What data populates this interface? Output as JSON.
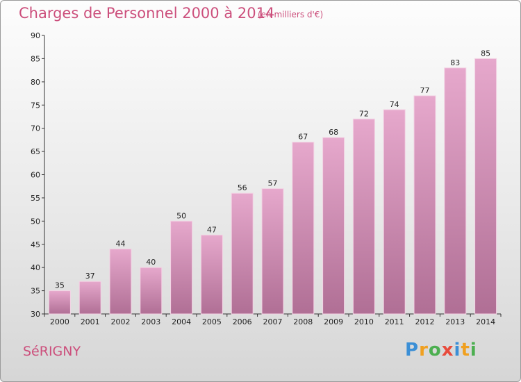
{
  "chart_data": {
    "type": "bar",
    "title": "Charges de Personnel 2000 à 2014",
    "subtitle": "(en milliers d'€)",
    "categories": [
      "2000",
      "2001",
      "2002",
      "2003",
      "2004",
      "2005",
      "2006",
      "2007",
      "2008",
      "2009",
      "2010",
      "2011",
      "2012",
      "2013",
      "2014"
    ],
    "values": [
      35,
      37,
      44,
      40,
      50,
      47,
      56,
      57,
      67,
      68,
      72,
      74,
      77,
      83,
      85
    ],
    "ylim": [
      30,
      90
    ],
    "yticks": [
      30,
      35,
      40,
      45,
      50,
      55,
      60,
      65,
      70,
      75,
      80,
      85,
      90
    ],
    "xlabel": "",
    "ylabel": "",
    "grid": false,
    "bar_color_top": "#e6a8cc",
    "bar_color_bottom": "#b06f95"
  },
  "footer": {
    "commune": "SéRIGNY",
    "logo_letters": [
      "P",
      "r",
      "o",
      "x",
      "i",
      "t",
      "i"
    ],
    "logo_colors": [
      "#3b8fd6",
      "#f0a020",
      "#4caf50",
      "#e84b3c",
      "#3b8fd6",
      "#f0a020",
      "#4caf50"
    ]
  },
  "accent_color": "#cc4f7c"
}
